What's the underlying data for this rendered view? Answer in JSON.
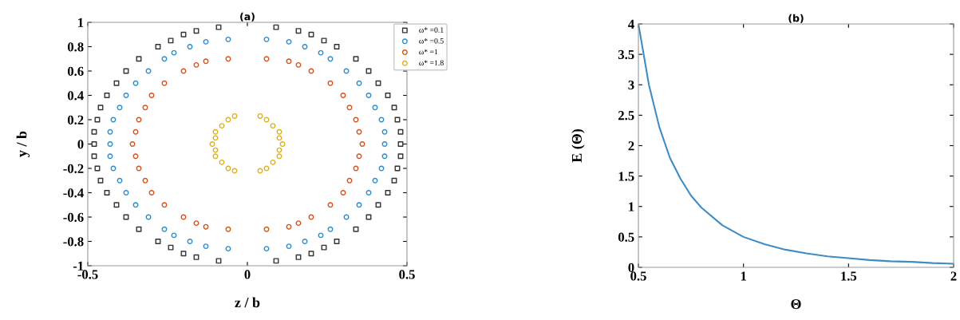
{
  "chart_data": [
    {
      "type": "scatter",
      "title": "(a)",
      "xlabel": "z / b",
      "ylabel": "y / b",
      "xlim": [
        -0.5,
        0.5
      ],
      "xticks": [
        -0.5,
        0,
        0.5
      ],
      "ylim": [
        -1,
        1
      ],
      "yticks": [
        -1,
        -0.8,
        -0.6,
        -0.4,
        -0.2,
        0,
        0.2,
        0.4,
        0.6,
        0.8,
        1
      ],
      "grid": false,
      "legend": "top right",
      "series": [
        {
          "name": "ω* =0.1",
          "color": "#333333",
          "marker": "square",
          "x": [
            0.09,
            0.16,
            0.2,
            0.24,
            0.28,
            0.34,
            0.38,
            0.41,
            0.44,
            0.46,
            0.47,
            0.48,
            0.48,
            0.48,
            0.47,
            0.46,
            0.44,
            0.41,
            0.38,
            0.34,
            0.28,
            0.24,
            0.2,
            0.16,
            0.09,
            -0.09,
            -0.16,
            -0.2,
            -0.24,
            -0.28,
            -0.34,
            -0.38,
            -0.41,
            -0.44,
            -0.46,
            -0.47,
            -0.48,
            -0.48,
            -0.48,
            -0.47,
            -0.46,
            -0.44,
            -0.41,
            -0.38,
            -0.34,
            -0.28,
            -0.24,
            -0.2,
            -0.16,
            -0.09
          ],
          "values": [
            0.96,
            0.93,
            0.9,
            0.85,
            0.8,
            0.7,
            0.6,
            0.5,
            0.4,
            0.3,
            0.2,
            0.1,
            0,
            -0.1,
            -0.2,
            -0.3,
            -0.4,
            -0.5,
            -0.6,
            -0.7,
            -0.8,
            -0.85,
            -0.9,
            -0.93,
            -0.96,
            0.96,
            0.93,
            0.9,
            0.85,
            0.8,
            0.7,
            0.6,
            0.5,
            0.4,
            0.3,
            0.2,
            0.1,
            0,
            -0.1,
            -0.2,
            -0.3,
            -0.4,
            -0.5,
            -0.6,
            -0.7,
            -0.8,
            -0.85,
            -0.9,
            -0.93,
            -0.96
          ]
        },
        {
          "name": "ω* =0.5",
          "color": "#2b8fd0",
          "marker": "circle",
          "x": [
            0.06,
            0.13,
            0.18,
            0.23,
            0.26,
            0.31,
            0.35,
            0.38,
            0.4,
            0.42,
            0.43,
            0.43,
            0.43,
            0.42,
            0.4,
            0.38,
            0.35,
            0.31,
            0.26,
            0.23,
            0.18,
            0.13,
            0.06,
            -0.06,
            -0.13,
            -0.18,
            -0.23,
            -0.26,
            -0.31,
            -0.35,
            -0.38,
            -0.4,
            -0.42,
            -0.43,
            -0.43,
            -0.43,
            -0.42,
            -0.4,
            -0.38,
            -0.35,
            -0.31,
            -0.26,
            -0.23,
            -0.18,
            -0.13,
            -0.06
          ],
          "values": [
            0.86,
            0.84,
            0.8,
            0.75,
            0.7,
            0.6,
            0.5,
            0.4,
            0.3,
            0.2,
            0.1,
            0,
            -0.1,
            -0.2,
            -0.3,
            -0.4,
            -0.5,
            -0.6,
            -0.7,
            -0.75,
            -0.8,
            -0.84,
            -0.86,
            0.86,
            0.84,
            0.8,
            0.75,
            0.7,
            0.6,
            0.5,
            0.4,
            0.3,
            0.2,
            0.1,
            0,
            -0.1,
            -0.2,
            -0.3,
            -0.4,
            -0.5,
            -0.6,
            -0.7,
            -0.75,
            -0.8,
            -0.84,
            -0.86
          ]
        },
        {
          "name": "ω* =1",
          "color": "#d95319",
          "marker": "circle",
          "x": [
            0.06,
            0.13,
            0.16,
            0.2,
            0.26,
            0.3,
            0.32,
            0.34,
            0.35,
            0.36,
            0.35,
            0.34,
            0.32,
            0.3,
            0.26,
            0.2,
            0.16,
            0.13,
            0.06,
            -0.06,
            -0.13,
            -0.16,
            -0.2,
            -0.26,
            -0.3,
            -0.32,
            -0.34,
            -0.35,
            -0.36,
            -0.35,
            -0.34,
            -0.32,
            -0.3,
            -0.26,
            -0.2,
            -0.16,
            -0.13,
            -0.06
          ],
          "values": [
            0.7,
            0.68,
            0.65,
            0.6,
            0.5,
            0.4,
            0.3,
            0.2,
            0.1,
            0,
            -0.1,
            -0.2,
            -0.3,
            -0.4,
            -0.5,
            -0.6,
            -0.65,
            -0.68,
            -0.7,
            0.7,
            0.68,
            0.65,
            0.6,
            0.5,
            0.4,
            0.3,
            0.2,
            0.1,
            0,
            -0.1,
            -0.2,
            -0.3,
            -0.4,
            -0.5,
            -0.6,
            -0.65,
            -0.68,
            -0.7
          ]
        },
        {
          "name": "ω* =1.8",
          "color": "#e0b020",
          "marker": "circle",
          "x": [
            0.04,
            0.06,
            0.08,
            0.1,
            0.1,
            0.11,
            0.1,
            0.1,
            0.08,
            0.06,
            0.04,
            -0.04,
            -0.06,
            -0.08,
            -0.1,
            -0.1,
            -0.11,
            -0.1,
            -0.1,
            -0.08,
            -0.06,
            -0.04
          ],
          "values": [
            0.23,
            0.2,
            0.15,
            0.1,
            0.05,
            0,
            -0.05,
            -0.1,
            -0.15,
            -0.2,
            -0.22,
            0.23,
            0.2,
            0.15,
            0.1,
            0.05,
            0,
            -0.05,
            -0.1,
            -0.15,
            -0.2,
            -0.22
          ]
        }
      ]
    },
    {
      "type": "line",
      "title": "(b)",
      "xlabel": "Θ",
      "ylabel": "E (Θ)",
      "xlim": [
        0.5,
        2
      ],
      "xticks": [
        0.5,
        1,
        1.5,
        2
      ],
      "ylim": [
        0,
        4
      ],
      "yticks": [
        0,
        0.5,
        1,
        1.5,
        2,
        2.5,
        3,
        3.5,
        4
      ],
      "grid": false,
      "legend": false,
      "series": [
        {
          "color": "#3d8cc4",
          "x": [
            0.5,
            0.55,
            0.6,
            0.65,
            0.7,
            0.75,
            0.8,
            0.9,
            1,
            1.1,
            1.2,
            1.3,
            1.4,
            1.5,
            1.6,
            1.7,
            1.8,
            1.9,
            2
          ],
          "values": [
            4,
            3.0,
            2.3,
            1.8,
            1.46,
            1.18,
            0.98,
            0.69,
            0.5,
            0.38,
            0.29,
            0.23,
            0.18,
            0.15,
            0.12,
            0.1,
            0.09,
            0.07,
            0.06
          ]
        }
      ]
    }
  ]
}
